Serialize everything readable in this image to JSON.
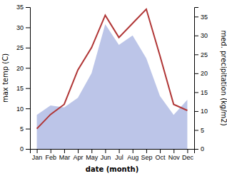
{
  "chart_data": {
    "type": "line",
    "xlabel": "date (month)",
    "ylabel": "max temp (C)",
    "y2label": "med. precipitation (kg/m2)",
    "categories": [
      "Jan",
      "Feb",
      "Mar",
      "Apr",
      "May",
      "Jun",
      "Jul",
      "Aug",
      "Sep",
      "Oct",
      "Nov",
      "Dec"
    ],
    "series": [
      {
        "type": "area",
        "axis": "y2",
        "color": "#bcc5e8",
        "values": [
          9.0,
          11.5,
          11.0,
          13.5,
          20.0,
          33.0,
          27.5,
          30.0,
          24.0,
          14.0,
          9.0,
          13.0
        ]
      },
      {
        "type": "line",
        "color": "#b03535",
        "values": [
          5.0,
          8.5,
          11.0,
          19.5,
          25.0,
          33.0,
          27.5,
          31.0,
          34.5,
          23.0,
          11.0,
          9.5
        ]
      }
    ],
    "ylim": [
      0,
      35
    ],
    "yticks": [
      0,
      5,
      10,
      15,
      20,
      25,
      30,
      35
    ],
    "y2lim": [
      0,
      37.5
    ],
    "y2ticks": [
      0,
      5,
      10,
      15,
      20,
      25,
      30,
      35
    ]
  }
}
